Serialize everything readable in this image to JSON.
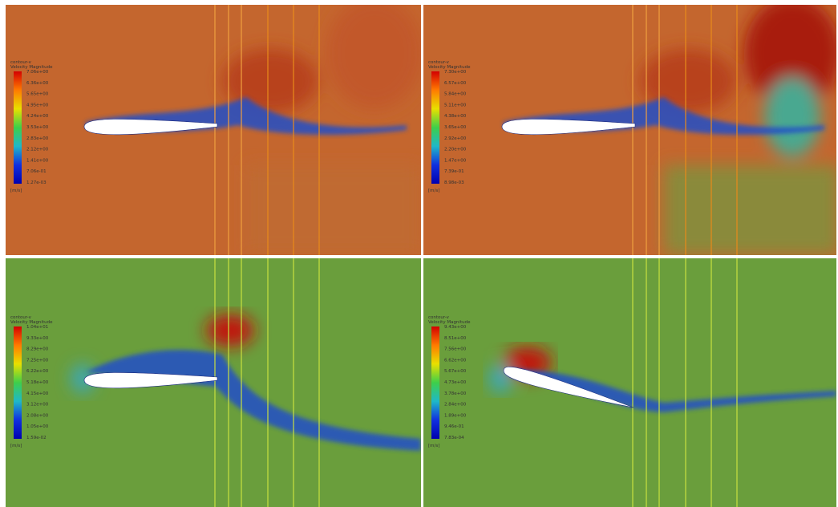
{
  "panels": [
    {
      "legend": {
        "title": "contour-v",
        "quantity": "Velocity Magnitude",
        "ticks": [
          "7.06e+00",
          "6.36e+00",
          "5.65e+00",
          "4.95e+00",
          "4.24e+00",
          "3.53e+00",
          "2.83e+00",
          "2.12e+00",
          "1.41e+00",
          "7.06e-01",
          "1.27e-03"
        ],
        "unit": "[m/s]"
      }
    },
    {
      "legend": {
        "title": "contour-v",
        "quantity": "Velocity Magnitude",
        "ticks": [
          "7.30e+00",
          "6.57e+00",
          "5.84e+00",
          "5.11e+00",
          "4.38e+00",
          "3.65e+00",
          "2.92e+00",
          "2.20e+00",
          "1.47e+00",
          "7.39e-01",
          "8.98e-03"
        ],
        "unit": "[m/s]"
      }
    },
    {
      "legend": {
        "title": "contour-v",
        "quantity": "Velocity Magnitude",
        "ticks": [
          "1.04e+01",
          "9.33e+00",
          "8.29e+00",
          "7.25e+00",
          "6.22e+00",
          "5.18e+00",
          "4.15e+00",
          "3.12e+00",
          "2.08e+00",
          "1.05e+00",
          "1.59e-02"
        ],
        "unit": "[m/s]"
      }
    },
    {
      "legend": {
        "title": "contour-v",
        "quantity": "Velocity Magnitude",
        "ticks": [
          "9.43e+00",
          "8.51e+00",
          "7.56e+00",
          "6.62e+00",
          "5.67e+00",
          "4.73e+00",
          "3.78e+00",
          "2.84e+00",
          "1.89e+00",
          "9.46e-01",
          "7.83e-04"
        ],
        "unit": "[m/s]"
      }
    }
  ]
}
